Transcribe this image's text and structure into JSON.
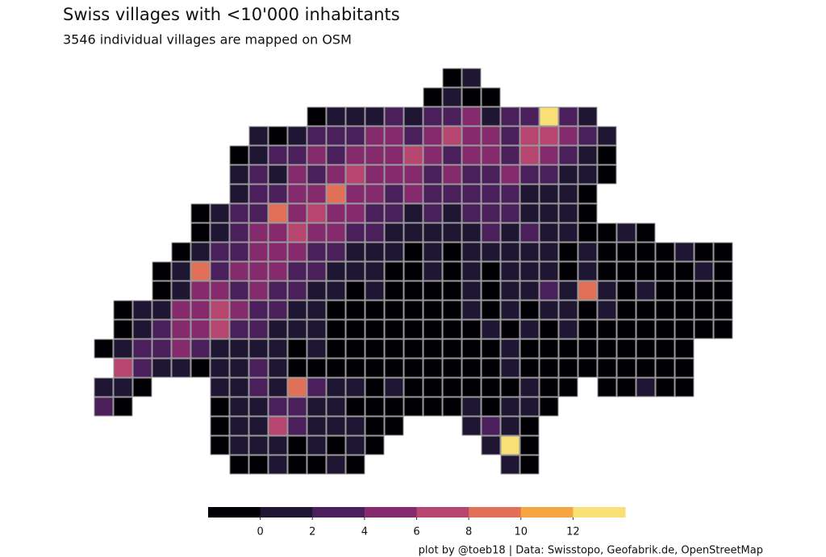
{
  "chart_data": {
    "type": "tilemap",
    "title": "Swiss villages with <10'000 inhabitants",
    "subtitle": "3546 individual villages are mapped on OSM",
    "caption": "plot by @toeb18 | Data: Swisstopo, Geofabrik.de, OpenStreetMap",
    "rows": [
      [
        null,
        null,
        null,
        null,
        null,
        null,
        null,
        null,
        null,
        null,
        null,
        null,
        null,
        null,
        null,
        null,
        null,
        null,
        0,
        1,
        null,
        null,
        null,
        null,
        null,
        null,
        null,
        null,
        null,
        null,
        null,
        null,
        null
      ],
      [
        null,
        null,
        null,
        null,
        null,
        null,
        null,
        null,
        null,
        null,
        null,
        null,
        null,
        null,
        null,
        null,
        null,
        0,
        1,
        0,
        0,
        null,
        null,
        null,
        null,
        null,
        null,
        null,
        null,
        null,
        null,
        null,
        null
      ],
      [
        null,
        null,
        null,
        null,
        null,
        null,
        null,
        null,
        null,
        null,
        null,
        0,
        1,
        2,
        1,
        3,
        2,
        4,
        3,
        5,
        2,
        3,
        4,
        13,
        3,
        1,
        null,
        null,
        null,
        null,
        null,
        null,
        null
      ],
      [
        null,
        null,
        null,
        null,
        null,
        null,
        null,
        null,
        1,
        0,
        2,
        3,
        4,
        3,
        5,
        6,
        4,
        5,
        7,
        6,
        5,
        4,
        7,
        8,
        6,
        3,
        1,
        null,
        null,
        null,
        null,
        null,
        null
      ],
      [
        null,
        null,
        null,
        null,
        null,
        null,
        null,
        0,
        2,
        3,
        4,
        5,
        4,
        6,
        5,
        6,
        7,
        5,
        4,
        6,
        5,
        4,
        7,
        5,
        4,
        2,
        0,
        null,
        null,
        null,
        null,
        null,
        null
      ],
      [
        null,
        null,
        null,
        null,
        null,
        null,
        null,
        1,
        3,
        2,
        5,
        4,
        6,
        7,
        5,
        6,
        5,
        4,
        5,
        3,
        4,
        5,
        4,
        3,
        2,
        1,
        0,
        null,
        null,
        null,
        null,
        null,
        null
      ],
      [
        null,
        null,
        null,
        null,
        null,
        null,
        null,
        2,
        3,
        4,
        5,
        6,
        10,
        5,
        6,
        4,
        5,
        3,
        4,
        3,
        4,
        3,
        2,
        2,
        1,
        0,
        null,
        null,
        null,
        null,
        null,
        null,
        null
      ],
      [
        null,
        null,
        null,
        null,
        null,
        0,
        1,
        3,
        4,
        9,
        5,
        7,
        6,
        5,
        4,
        3,
        2,
        3,
        2,
        3,
        4,
        3,
        2,
        1,
        1,
        0,
        null,
        null,
        null,
        null,
        null,
        null,
        null
      ],
      [
        null,
        null,
        null,
        null,
        null,
        0,
        2,
        3,
        5,
        6,
        7,
        6,
        5,
        4,
        3,
        2,
        2,
        1,
        2,
        1,
        3,
        2,
        3,
        1,
        1,
        0,
        0,
        1,
        0,
        null,
        null,
        null,
        null
      ],
      [
        null,
        null,
        null,
        null,
        0,
        1,
        3,
        4,
        5,
        6,
        5,
        4,
        3,
        2,
        1,
        1,
        0,
        1,
        0,
        1,
        2,
        1,
        2,
        1,
        0,
        1,
        0,
        0,
        0,
        0,
        1,
        0,
        0
      ],
      [
        null,
        null,
        null,
        0,
        1,
        9,
        4,
        5,
        6,
        5,
        4,
        3,
        2,
        1,
        1,
        0,
        0,
        1,
        0,
        1,
        0,
        1,
        2,
        1,
        0,
        1,
        0,
        0,
        0,
        0,
        0,
        1,
        0
      ],
      [
        null,
        null,
        null,
        0,
        2,
        5,
        6,
        4,
        5,
        3,
        4,
        2,
        1,
        0,
        1,
        0,
        0,
        0,
        0,
        1,
        0,
        2,
        1,
        3,
        1,
        10,
        1,
        0,
        1,
        0,
        0,
        0,
        0
      ],
      [
        null,
        0,
        1,
        2,
        5,
        6,
        7,
        5,
        4,
        3,
        2,
        1,
        0,
        0,
        0,
        0,
        0,
        0,
        0,
        1,
        0,
        1,
        0,
        2,
        1,
        0,
        1,
        0,
        0,
        0,
        0,
        0,
        0
      ],
      [
        null,
        0,
        2,
        3,
        6,
        5,
        7,
        4,
        3,
        2,
        1,
        1,
        0,
        0,
        0,
        0,
        0,
        0,
        0,
        0,
        1,
        0,
        1,
        0,
        1,
        0,
        0,
        0,
        0,
        0,
        0,
        0,
        0
      ],
      [
        0,
        1,
        3,
        4,
        5,
        3,
        2,
        1,
        2,
        1,
        0,
        1,
        0,
        0,
        0,
        0,
        0,
        0,
        0,
        0,
        0,
        1,
        0,
        0,
        0,
        0,
        0,
        0,
        0,
        0,
        0,
        null,
        null
      ],
      [
        null,
        8,
        3,
        2,
        1,
        0,
        1,
        2,
        3,
        1,
        0,
        0,
        0,
        0,
        0,
        0,
        0,
        0,
        0,
        0,
        0,
        1,
        0,
        0,
        0,
        0,
        0,
        0,
        0,
        0,
        0,
        null,
        null
      ],
      [
        1,
        2,
        0,
        null,
        null,
        null,
        1,
        2,
        3,
        2,
        10,
        3,
        2,
        1,
        0,
        1,
        0,
        0,
        0,
        0,
        0,
        0,
        1,
        0,
        0,
        null,
        0,
        0,
        1,
        0,
        0,
        null,
        null
      ],
      [
        3,
        0,
        null,
        null,
        null,
        null,
        0,
        1,
        2,
        3,
        4,
        2,
        1,
        0,
        0,
        0,
        0,
        0,
        0,
        1,
        0,
        2,
        1,
        0,
        null,
        null,
        null,
        null,
        null,
        null,
        null,
        null,
        null
      ],
      [
        null,
        null,
        null,
        null,
        null,
        null,
        0,
        1,
        2,
        7,
        3,
        1,
        2,
        1,
        0,
        0,
        null,
        null,
        null,
        2,
        3,
        1,
        0,
        null,
        null,
        null,
        null,
        null,
        null,
        null,
        null,
        null,
        null
      ],
      [
        null,
        null,
        null,
        null,
        null,
        null,
        0,
        1,
        2,
        1,
        0,
        1,
        0,
        1,
        0,
        null,
        null,
        null,
        null,
        null,
        1,
        13,
        0,
        null,
        null,
        null,
        null,
        null,
        null,
        null,
        null,
        null,
        null
      ],
      [
        null,
        null,
        null,
        null,
        null,
        null,
        null,
        0,
        0,
        1,
        0,
        0,
        1,
        0,
        null,
        null,
        null,
        null,
        null,
        null,
        null,
        2,
        0,
        null,
        null,
        null,
        null,
        null,
        null,
        null,
        null,
        null,
        null
      ]
    ],
    "colorbar": {
      "lim": [
        -2,
        14
      ],
      "ticks": [
        0,
        2,
        4,
        6,
        8,
        10,
        12
      ],
      "colors": [
        "#000004",
        "#1f1633",
        "#4b1f5c",
        "#842a6d",
        "#b6456f",
        "#e07158",
        "#f6a543",
        "#f8df76"
      ]
    }
  }
}
